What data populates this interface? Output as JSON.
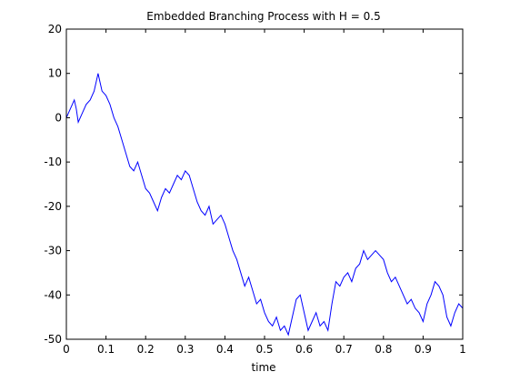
{
  "chart_data": {
    "type": "line",
    "title": "Embedded Branching Process with H = 0.5",
    "xlabel": "time",
    "ylabel": "",
    "xlim": [
      0,
      1
    ],
    "ylim": [
      -50,
      20
    ],
    "x_ticks": [
      0,
      0.1,
      0.2,
      0.3,
      0.4,
      0.5,
      0.6,
      0.7,
      0.8,
      0.9,
      1
    ],
    "x_tick_labels": [
      "0",
      "0.1",
      "0.2",
      "0.3",
      "0.4",
      "0.5",
      "0.6",
      "0.7",
      "0.8",
      "0.9",
      "1"
    ],
    "y_ticks": [
      20,
      10,
      0,
      -10,
      -20,
      -30,
      -40,
      -50
    ],
    "y_tick_labels": [
      "20",
      "10",
      "0",
      "-10",
      "-20",
      "-30",
      "-40",
      "-50"
    ],
    "grid": false,
    "line_color": "#0000ff",
    "series": [
      {
        "x": [
          0,
          0.01,
          0.02,
          0.025,
          0.03,
          0.04,
          0.05,
          0.06,
          0.07,
          0.08,
          0.085,
          0.09,
          0.1,
          0.11,
          0.12,
          0.13,
          0.14,
          0.15,
          0.16,
          0.17,
          0.18,
          0.19,
          0.2,
          0.21,
          0.22,
          0.23,
          0.24,
          0.25,
          0.26,
          0.27,
          0.28,
          0.29,
          0.3,
          0.31,
          0.32,
          0.33,
          0.34,
          0.35,
          0.36,
          0.37,
          0.38,
          0.39,
          0.4,
          0.41,
          0.42,
          0.43,
          0.44,
          0.45,
          0.46,
          0.47,
          0.48,
          0.49,
          0.5,
          0.51,
          0.52,
          0.53,
          0.54,
          0.55,
          0.56,
          0.57,
          0.58,
          0.59,
          0.6,
          0.61,
          0.62,
          0.63,
          0.64,
          0.65,
          0.66,
          0.67,
          0.68,
          0.69,
          0.7,
          0.71,
          0.72,
          0.73,
          0.74,
          0.75,
          0.76,
          0.77,
          0.78,
          0.79,
          0.8,
          0.81,
          0.82,
          0.83,
          0.84,
          0.85,
          0.86,
          0.87,
          0.88,
          0.89,
          0.9,
          0.91,
          0.92,
          0.93,
          0.94,
          0.95,
          0.96,
          0.97,
          0.98,
          0.99,
          1.0
        ],
        "y": [
          0,
          2,
          4,
          2,
          -1,
          1,
          3,
          4,
          6,
          10,
          8,
          6,
          5,
          3,
          0,
          -2,
          -5,
          -8,
          -11,
          -12,
          -10,
          -13,
          -16,
          -17,
          -19,
          -21,
          -18,
          -16,
          -17,
          -15,
          -13,
          -14,
          -12,
          -13,
          -16,
          -19,
          -21,
          -22,
          -20,
          -24,
          -23,
          -22,
          -24,
          -27,
          -30,
          -32,
          -35,
          -38,
          -36,
          -39,
          -42,
          -41,
          -44,
          -46,
          -47,
          -45,
          -48,
          -47,
          -49,
          -45,
          -41,
          -40,
          -44,
          -48,
          -46,
          -44,
          -47,
          -46,
          -48,
          -42,
          -37,
          -38,
          -36,
          -35,
          -37,
          -34,
          -33,
          -30,
          -32,
          -31,
          -30,
          -31,
          -32,
          -35,
          -37,
          -36,
          -38,
          -40,
          -42,
          -41,
          -43,
          -44,
          -46,
          -42,
          -40,
          -37,
          -38,
          -40,
          -45,
          -47,
          -44,
          -42,
          -43
        ]
      }
    ]
  }
}
